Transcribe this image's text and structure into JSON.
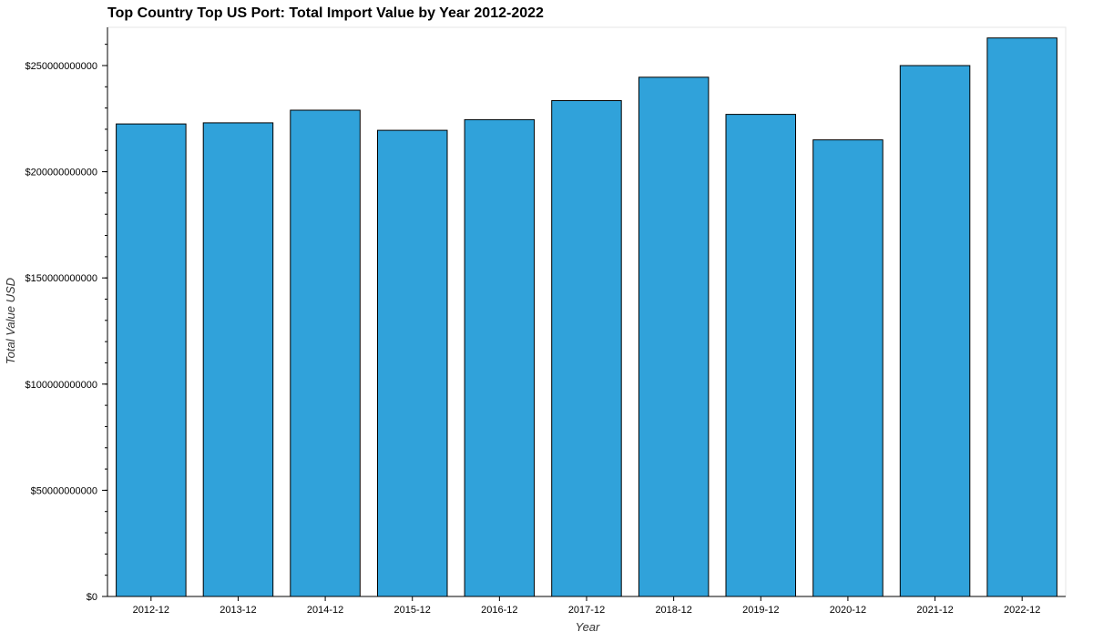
{
  "chart_data": {
    "type": "bar",
    "title": "Top Country Top US Port: Total Import Value by Year 2012-2022",
    "xlabel": "Year",
    "ylabel": "Total Value USD",
    "categories": [
      "2012-12",
      "2013-12",
      "2014-12",
      "2015-12",
      "2016-12",
      "2017-12",
      "2018-12",
      "2019-12",
      "2020-12",
      "2021-12",
      "2022-12"
    ],
    "values": [
      222500000000,
      223000000000,
      229000000000,
      219500000000,
      224500000000,
      233500000000,
      244500000000,
      227000000000,
      215000000000,
      250000000000,
      263000000000
    ],
    "ylim": [
      0,
      268000000000
    ],
    "yticks": [
      0,
      50000000000,
      100000000000,
      150000000000,
      200000000000,
      250000000000
    ],
    "ytick_labels": [
      "$0",
      "$50000000000",
      "$100000000000",
      "$150000000000",
      "$200000000000",
      "$250000000000"
    ],
    "grid": false,
    "legend": "none",
    "colors": {
      "bar_fill": "#30a2da",
      "bar_stroke": "#000000",
      "axis": "#000000",
      "text": "#000000",
      "frame": "#e5e5e5"
    }
  }
}
